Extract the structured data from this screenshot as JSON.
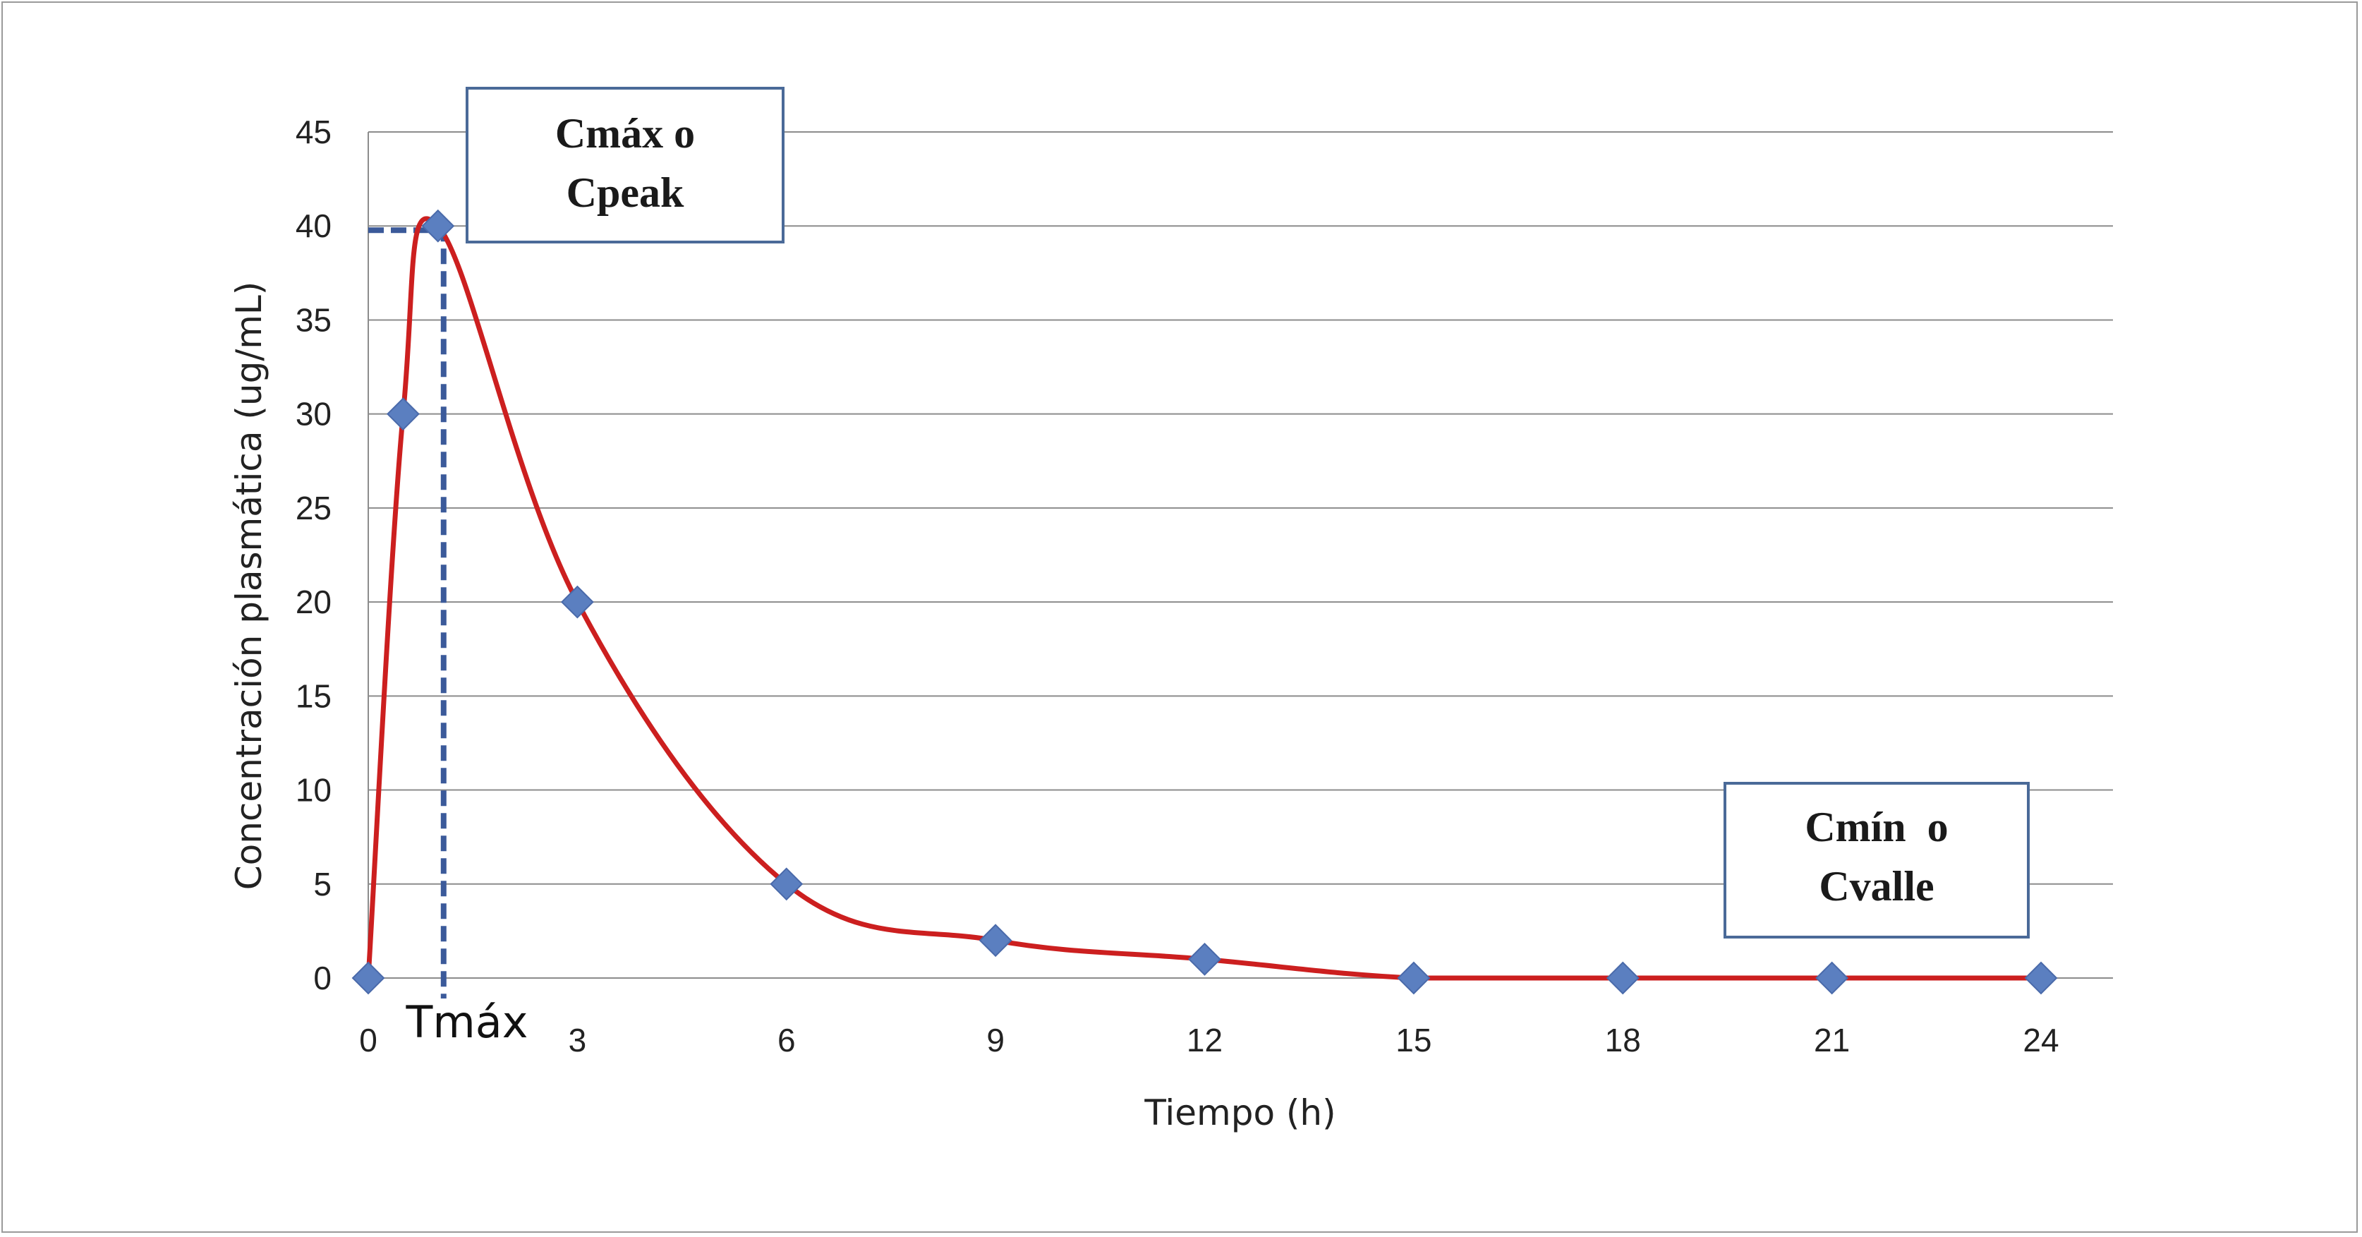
{
  "chart_data": {
    "type": "line",
    "xlabel": "Tiempo (h)",
    "ylabel": "Concentración plasmática (ug/mL)",
    "x_ticks": [
      "0",
      "3",
      "6",
      "9",
      "12",
      "15",
      "18",
      "21",
      "24"
    ],
    "y_ticks": [
      "0",
      "5",
      "10",
      "15",
      "20",
      "25",
      "30",
      "35",
      "40",
      "45"
    ],
    "xlim": [
      0,
      24
    ],
    "ylim": [
      0,
      45
    ],
    "grid": "horizontal",
    "series": [
      {
        "x": [
          0,
          0.5,
          1,
          3,
          6,
          9,
          12,
          15,
          18,
          21,
          24
        ],
        "y": [
          0,
          30,
          40,
          20,
          5,
          2,
          1,
          0,
          0,
          0,
          0
        ],
        "color": "#cc1f1f",
        "marker_color": "#5b7fc0"
      }
    ],
    "peak": {
      "x": 1,
      "y": 40,
      "label": "Tmáx"
    },
    "annotations": [
      {
        "id": "cmax",
        "lines": [
          "Cmáx o",
          "Cpeak"
        ]
      },
      {
        "id": "cmin",
        "lines": [
          "Cmín  o",
          "Cvalle"
        ]
      }
    ]
  }
}
